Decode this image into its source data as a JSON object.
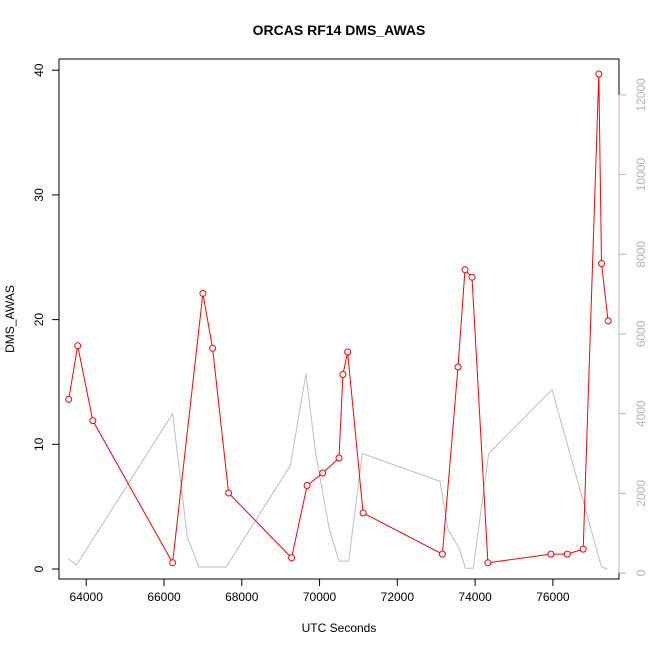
{
  "chart_data": {
    "type": "line",
    "title": "ORCAS RF14 DMS_AWAS",
    "xlabel": "UTC Seconds",
    "ylabel": "DMS_AWAS",
    "xlim": [
      63300,
      77700
    ],
    "ylim": [
      -0.8,
      40.9
    ],
    "y2lim": [
      -150,
      12900
    ],
    "x_ticks": [
      64000,
      66000,
      68000,
      70000,
      72000,
      74000,
      76000
    ],
    "y_ticks": [
      0,
      10,
      20,
      30,
      40
    ],
    "y2_ticks": [
      0,
      2000,
      4000,
      6000,
      8000,
      10000,
      12000
    ],
    "grid": false,
    "series": [
      {
        "axis": "left",
        "color": "#ff0000",
        "marker": "open-circle",
        "x": [
          63550,
          63780,
          64170,
          66220,
          67000,
          67250,
          67660,
          69280,
          69680,
          70080,
          70500,
          70600,
          70720,
          71120,
          73160,
          73560,
          73740,
          73920,
          74330,
          75950,
          76370,
          76780,
          77180,
          77250,
          77420
        ],
        "y": [
          13.6,
          17.9,
          11.9,
          0.5,
          22.1,
          17.7,
          6.1,
          0.9,
          6.7,
          7.7,
          8.9,
          15.6,
          17.4,
          4.5,
          1.2,
          16.2,
          24.0,
          23.4,
          0.5,
          1.2,
          1.2,
          1.6,
          39.7,
          24.5,
          19.9
        ]
      },
      {
        "axis": "right",
        "color": "#bebebe",
        "marker": "none",
        "x": [
          63550,
          63750,
          66220,
          66600,
          66900,
          67600,
          69250,
          69650,
          69900,
          70250,
          70500,
          70750,
          71100,
          73100,
          73300,
          73600,
          73750,
          73950,
          74350,
          75980,
          77250,
          77400
        ],
        "y": [
          350,
          200,
          4000,
          900,
          150,
          150,
          2700,
          5000,
          3000,
          1100,
          300,
          300,
          3000,
          2300,
          1100,
          600,
          120,
          120,
          3000,
          4600,
          150,
          100
        ]
      }
    ]
  }
}
